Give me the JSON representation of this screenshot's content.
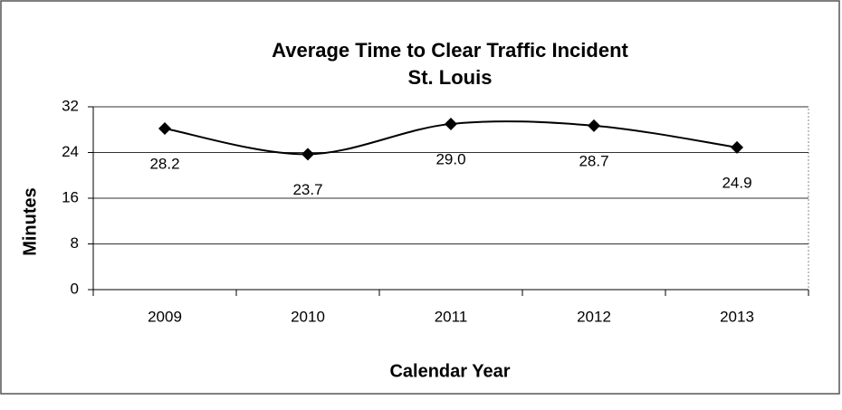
{
  "chart_data": {
    "type": "line",
    "title": "Average Time to Clear Traffic Incident",
    "subtitle": "St. Louis",
    "x_label": "Calendar Year",
    "y_label": "Minutes",
    "categories": [
      "2009",
      "2010",
      "2011",
      "2012",
      "2013"
    ],
    "values": [
      28.2,
      23.7,
      29.0,
      28.7,
      24.9
    ],
    "value_labels": [
      "28.2",
      "23.7",
      "29.0",
      "28.7",
      "24.9"
    ],
    "color": "#000000",
    "smooth": true,
    "ylim": [
      0,
      32
    ],
    "yticks": [
      0,
      8,
      16,
      24,
      32
    ],
    "grid": true
  }
}
